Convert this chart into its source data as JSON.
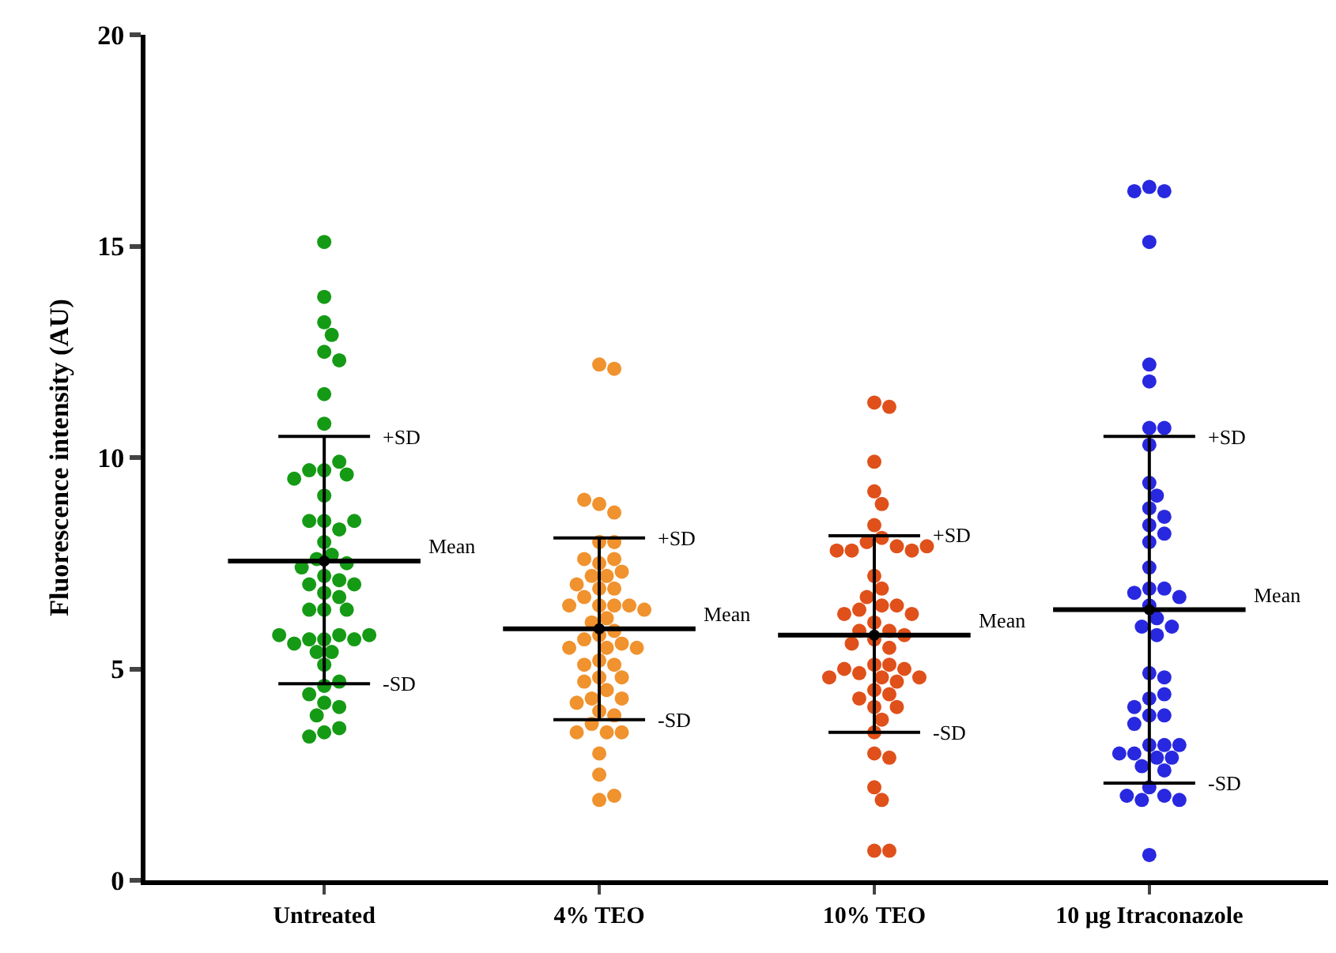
{
  "chart_data": {
    "type": "scatter",
    "ylabel": "Fluorescence intensity (AU)",
    "categories": [
      "Untreated",
      "4% TEO",
      "10% TEO",
      "10 µg Itraconazole"
    ],
    "ylim": [
      0,
      20
    ],
    "yticks": [
      0,
      5,
      10,
      15,
      20
    ],
    "grid": false,
    "marker": "circle",
    "series": [
      {
        "color": "#159a15",
        "x": [
          "Untreated",
          "Untreated",
          "Untreated",
          "Untreated",
          "Untreated",
          "Untreated",
          "Untreated",
          "Untreated",
          "Untreated",
          "Untreated",
          "Untreated",
          "Untreated",
          "Untreated",
          "Untreated",
          "Untreated",
          "Untreated",
          "Untreated",
          "Untreated",
          "Untreated",
          "Untreated",
          "Untreated",
          "Untreated",
          "Untreated",
          "Untreated",
          "Untreated",
          "Untreated",
          "Untreated",
          "Untreated",
          "Untreated",
          "Untreated",
          "Untreated",
          "Untreated",
          "Untreated",
          "Untreated",
          "Untreated",
          "Untreated",
          "Untreated",
          "Untreated",
          "Untreated",
          "Untreated",
          "Untreated",
          "Untreated",
          "Untreated",
          "Untreated",
          "Untreated",
          "Untreated",
          "Untreated",
          "Untreated",
          "Untreated",
          "Untreated",
          "Untreated"
        ],
        "values": [
          15.1,
          13.8,
          13.2,
          12.9,
          12.5,
          12.3,
          11.5,
          10.8,
          9.7,
          9.9,
          9.7,
          9.6,
          9.5,
          9.1,
          8.5,
          8.3,
          8.5,
          8.5,
          8.0,
          7.7,
          7.6,
          7.5,
          7.4,
          7.2,
          7.1,
          6.8,
          7.0,
          7.0,
          6.7,
          6.4,
          6.4,
          6.4,
          5.7,
          5.8,
          5.7,
          5.7,
          5.6,
          5.8,
          5.8,
          5.4,
          5.4,
          5.1,
          4.6,
          4.7,
          4.4,
          4.2,
          4.1,
          3.9,
          3.5,
          3.6,
          3.4
        ]
      },
      {
        "color": "#f0922e",
        "x": [
          "4% TEO",
          "4% TEO",
          "4% TEO",
          "4% TEO",
          "4% TEO",
          "4% TEO",
          "4% TEO",
          "4% TEO",
          "4% TEO",
          "4% TEO",
          "4% TEO",
          "4% TEO",
          "4% TEO",
          "4% TEO",
          "4% TEO",
          "4% TEO",
          "4% TEO",
          "4% TEO",
          "4% TEO",
          "4% TEO",
          "4% TEO",
          "4% TEO",
          "4% TEO",
          "4% TEO",
          "4% TEO",
          "4% TEO",
          "4% TEO",
          "4% TEO",
          "4% TEO",
          "4% TEO",
          "4% TEO",
          "4% TEO",
          "4% TEO",
          "4% TEO",
          "4% TEO",
          "4% TEO",
          "4% TEO",
          "4% TEO",
          "4% TEO",
          "4% TEO",
          "4% TEO",
          "4% TEO",
          "4% TEO",
          "4% TEO",
          "4% TEO",
          "4% TEO",
          "4% TEO",
          "4% TEO",
          "4% TEO",
          "4% TEO",
          "4% TEO"
        ],
        "values": [
          12.2,
          12.1,
          8.9,
          8.7,
          9.0,
          8.0,
          8.0,
          7.5,
          7.6,
          7.6,
          7.3,
          7.2,
          7.2,
          7.0,
          6.9,
          6.9,
          6.7,
          6.5,
          6.5,
          6.5,
          6.5,
          6.4,
          6.2,
          6.1,
          5.9,
          5.8,
          5.7,
          5.6,
          5.5,
          5.5,
          5.5,
          5.2,
          5.1,
          5.1,
          4.8,
          4.8,
          4.7,
          4.5,
          4.3,
          4.3,
          4.2,
          4.0,
          3.9,
          3.7,
          3.5,
          3.5,
          3.5,
          3.0,
          2.5,
          1.9,
          2.0
        ]
      },
      {
        "color": "#e0501a",
        "x": [
          "10% TEO",
          "10% TEO",
          "10% TEO",
          "10% TEO",
          "10% TEO",
          "10% TEO",
          "10% TEO",
          "10% TEO",
          "10% TEO",
          "10% TEO",
          "10% TEO",
          "10% TEO",
          "10% TEO",
          "10% TEO",
          "10% TEO",
          "10% TEO",
          "10% TEO",
          "10% TEO",
          "10% TEO",
          "10% TEO",
          "10% TEO",
          "10% TEO",
          "10% TEO",
          "10% TEO",
          "10% TEO",
          "10% TEO",
          "10% TEO",
          "10% TEO",
          "10% TEO",
          "10% TEO",
          "10% TEO",
          "10% TEO",
          "10% TEO",
          "10% TEO",
          "10% TEO",
          "10% TEO",
          "10% TEO",
          "10% TEO",
          "10% TEO",
          "10% TEO",
          "10% TEO",
          "10% TEO",
          "10% TEO",
          "10% TEO",
          "10% TEO",
          "10% TEO",
          "10% TEO",
          "10% TEO",
          "10% TEO",
          "10% TEO"
        ],
        "values": [
          11.3,
          11.2,
          9.9,
          9.2,
          8.9,
          8.4,
          8.1,
          8.0,
          7.9,
          7.8,
          7.8,
          7.8,
          7.9,
          7.2,
          6.9,
          6.7,
          6.5,
          6.5,
          6.4,
          6.3,
          6.3,
          6.1,
          5.9,
          5.9,
          5.8,
          5.7,
          5.6,
          5.5,
          5.1,
          5.1,
          4.9,
          5.0,
          5.0,
          4.8,
          4.8,
          4.8,
          4.7,
          4.5,
          4.4,
          4.3,
          4.1,
          4.1,
          3.8,
          3.5,
          3.0,
          2.9,
          2.2,
          1.9,
          0.7,
          0.7
        ]
      },
      {
        "color": "#2828e0",
        "x": [
          "10 µg Itraconazole",
          "10 µg Itraconazole",
          "10 µg Itraconazole",
          "10 µg Itraconazole",
          "10 µg Itraconazole",
          "10 µg Itraconazole",
          "10 µg Itraconazole",
          "10 µg Itraconazole",
          "10 µg Itraconazole",
          "10 µg Itraconazole",
          "10 µg Itraconazole",
          "10 µg Itraconazole",
          "10 µg Itraconazole",
          "10 µg Itraconazole",
          "10 µg Itraconazole",
          "10 µg Itraconazole",
          "10 µg Itraconazole",
          "10 µg Itraconazole",
          "10 µg Itraconazole",
          "10 µg Itraconazole",
          "10 µg Itraconazole",
          "10 µg Itraconazole",
          "10 µg Itraconazole",
          "10 µg Itraconazole",
          "10 µg Itraconazole",
          "10 µg Itraconazole",
          "10 µg Itraconazole",
          "10 µg Itraconazole",
          "10 µg Itraconazole",
          "10 µg Itraconazole",
          "10 µg Itraconazole",
          "10 µg Itraconazole",
          "10 µg Itraconazole",
          "10 µg Itraconazole",
          "10 µg Itraconazole",
          "10 µg Itraconazole",
          "10 µg Itraconazole",
          "10 µg Itraconazole",
          "10 µg Itraconazole",
          "10 µg Itraconazole",
          "10 µg Itraconazole",
          "10 µg Itraconazole",
          "10 µg Itraconazole",
          "10 µg Itraconazole",
          "10 µg Itraconazole",
          "10 µg Itraconazole",
          "10 µg Itraconazole",
          "10 µg Itraconazole",
          "10 µg Itraconazole"
        ],
        "values": [
          16.4,
          16.3,
          16.3,
          15.1,
          12.2,
          11.8,
          10.7,
          10.7,
          10.3,
          9.4,
          9.1,
          8.8,
          8.6,
          8.4,
          8.2,
          8.0,
          7.4,
          6.9,
          6.9,
          6.8,
          6.7,
          6.5,
          6.2,
          6.0,
          6.0,
          5.8,
          4.9,
          4.8,
          4.3,
          4.4,
          4.1,
          3.9,
          3.9,
          3.7,
          3.2,
          2.9,
          3.0,
          3.2,
          2.9,
          3.0,
          3.2,
          2.7,
          2.6,
          2.2,
          2.0,
          1.9,
          2.0,
          1.9,
          0.6
        ]
      },
      {
        "type": "scatter",
        "color": "#000000",
        "x": [
          "Untreated",
          "4% TEO",
          "10% TEO",
          "10 µg Itraconazole"
        ],
        "values": [
          7.55,
          5.95,
          5.8,
          6.4
        ],
        "errors": [
          [
            4.65,
            10.5
          ],
          [
            3.8,
            8.1
          ],
          [
            3.5,
            8.15
          ],
          [
            2.3,
            10.5
          ]
        ]
      }
    ],
    "annotations": [
      {
        "text": "+SD",
        "x": "Untreated",
        "y": 10.5
      },
      "Mean",
      {
        "text": "-SD",
        "x": "Untreated",
        "y": 4.65
      },
      {
        "text": "+SD",
        "x": "4% TEO",
        "y": 8.1
      },
      "Mean",
      {
        "text": "-SD",
        "x": "4% TEO",
        "y": 3.8
      },
      {
        "text": "+SD",
        "x": "10% TEO",
        "y": 8.15
      },
      "Mean",
      {
        "text": "-SD",
        "x": "10% TEO",
        "y": 3.5
      },
      {
        "text": "+SD",
        "x": "10 µg Itraconazole",
        "y": 10.5
      },
      "Mean",
      {
        "text": "-SD",
        "x": "10 µg Itraconazole",
        "y": 2.3
      }
    ]
  }
}
